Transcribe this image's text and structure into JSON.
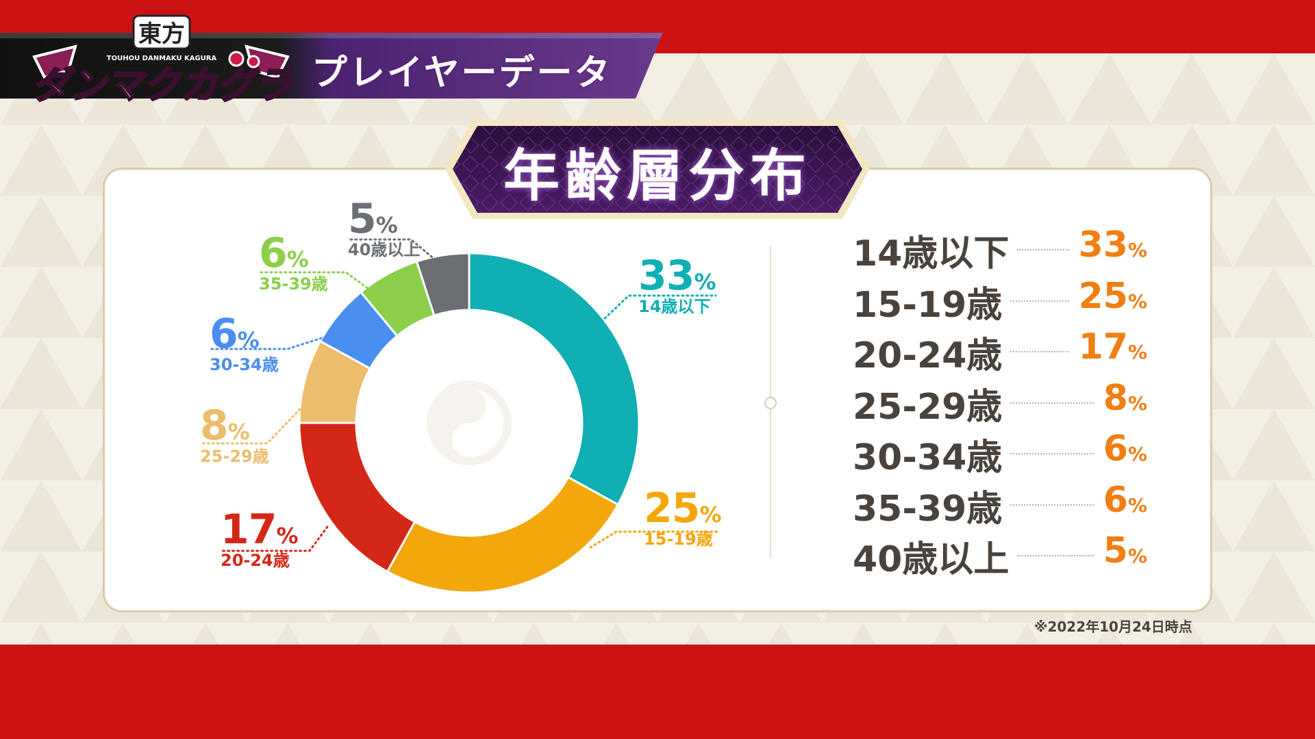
{
  "header": {
    "logo_text_top": "東方",
    "logo_text_sub": "TOUHOU DANMAKU KAGURA",
    "logo_text_main": "ダンマクカグラ",
    "section_title": "プレイヤーデータ"
  },
  "colors": {
    "red_band": "#cc1212",
    "accent_orange": "#f07e13",
    "dark_text": "#4a433d",
    "badge_purple": "#3a1550"
  },
  "chart_data": {
    "type": "pie",
    "title": "年齢層分布",
    "percent_sign": "%",
    "slices": [
      {
        "label": "14歳以下",
        "value": 33,
        "color": "#10afb3"
      },
      {
        "label": "15-19歳",
        "value": 25,
        "color": "#f4a70a"
      },
      {
        "label": "20-24歳",
        "value": 17,
        "color": "#d52718"
      },
      {
        "label": "25-29歳",
        "value": 8,
        "color": "#ecbd6c"
      },
      {
        "label": "30-34歳",
        "value": 6,
        "color": "#4a8ef0"
      },
      {
        "label": "35-39歳",
        "value": 6,
        "color": "#8bcf4a"
      },
      {
        "label": "40歳以上",
        "value": 5,
        "color": "#6b6f73"
      }
    ]
  },
  "table": {
    "rows": [
      {
        "category": "14歳以下",
        "value": "33"
      },
      {
        "category": "15-19歳",
        "value": "25"
      },
      {
        "category": "20-24歳",
        "value": "17"
      },
      {
        "category": "25-29歳",
        "value": "8"
      },
      {
        "category": "30-34歳",
        "value": "6"
      },
      {
        "category": "35-39歳",
        "value": "6"
      },
      {
        "category": "40歳以上",
        "value": "5"
      }
    ]
  },
  "footnote": "※2022年10月24日時点"
}
